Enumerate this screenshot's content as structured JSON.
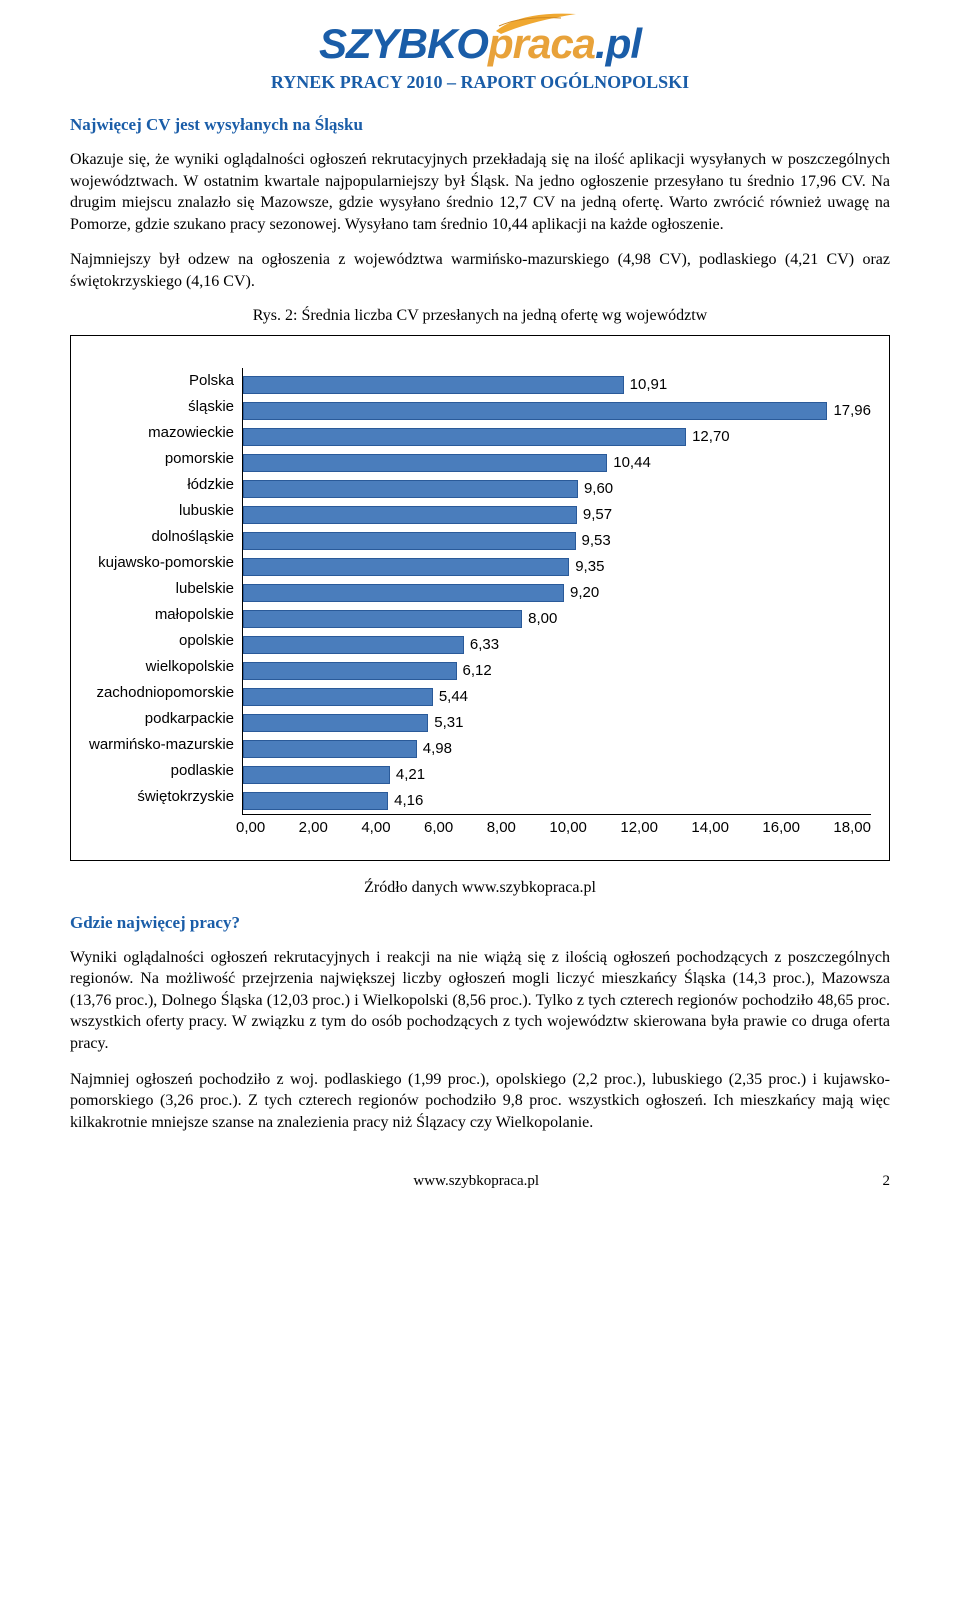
{
  "logo": {
    "part1": "SZYBKO",
    "part2": "praca",
    "part3": ".pl",
    "wing_color": "#f0a830"
  },
  "subtitle": "RYNEK PRACY 2010 – RAPORT OGÓLNOPOLSKI",
  "section1": {
    "heading": "Najwięcej CV jest wysyłanych na Śląsku",
    "p1": "Okazuje się, że wyniki oglądalności ogłoszeń rekrutacyjnych przekładają się na ilość aplikacji wysyłanych w poszczególnych województwach. W ostatnim kwartale najpopularniejszy był Śląsk. Na jedno ogłoszenie przesyłano tu średnio 17,96 CV. Na drugim miejscu znalazło się Mazowsze, gdzie wysyłano średnio 12,7 CV na jedną ofertę. Warto zwrócić również uwagę na Pomorze, gdzie szukano pracy sezonowej. Wysyłano tam średnio 10,44 aplikacji na każde ogłoszenie.",
    "p2": "Najmniejszy był odzew na ogłoszenia z województwa warmińsko-mazurskiego (4,98 CV), podlaskiego (4,21 CV) oraz świętokrzyskiego (4,16 CV)."
  },
  "figure": {
    "caption": "Rys. 2: Średnia liczba CV przesłanych na jedną ofertę wg województw",
    "type": "horizontal_bar",
    "xlim": [
      0,
      18
    ],
    "xtick_step": 2,
    "xticks": [
      "0,00",
      "2,00",
      "4,00",
      "6,00",
      "8,00",
      "10,00",
      "12,00",
      "14,00",
      "16,00",
      "18,00"
    ],
    "bar_color": "#4a7dbc",
    "bar_border": "#2a5a99",
    "categories": [
      "Polska",
      "śląskie",
      "mazowieckie",
      "pomorskie",
      "łódzkie",
      "lubuskie",
      "dolnośląskie",
      "kujawsko-pomorskie",
      "lubelskie",
      "małopolskie",
      "opolskie",
      "wielkopolskie",
      "zachodniopomorskie",
      "podkarpackie",
      "warmińsko-mazurskie",
      "podlaskie",
      "świętokrzyskie"
    ],
    "values": [
      10.91,
      17.96,
      12.7,
      10.44,
      9.6,
      9.57,
      9.53,
      9.35,
      9.2,
      8.0,
      6.33,
      6.12,
      5.44,
      5.31,
      4.98,
      4.21,
      4.16
    ],
    "value_labels": [
      "10,91",
      "17,96",
      "12,70",
      "10,44",
      "9,60",
      "9,57",
      "9,53",
      "9,35",
      "9,20",
      "8,00",
      "6,33",
      "6,12",
      "5,44",
      "5,31",
      "4,98",
      "4,21",
      "4,16"
    ],
    "label_font": "Arial",
    "label_fontsize": 15
  },
  "source": "Źródło danych www.szybkopraca.pl",
  "section2": {
    "heading": "Gdzie najwięcej pracy?",
    "p1": "Wyniki oglądalności ogłoszeń rekrutacyjnych i reakcji na nie wiążą się z ilością ogłoszeń pochodzących z poszczególnych regionów. Na możliwość przejrzenia największej liczby ogłoszeń mogli liczyć mieszkańcy Śląska (14,3 proc.), Mazowsza (13,76 proc.), Dolnego Śląska (12,03 proc.) i Wielkopolski (8,56 proc.). Tylko z tych czterech regionów pochodziło 48,65 proc. wszystkich oferty pracy. W związku z tym do osób pochodzących z tych województw skierowana była prawie co druga oferta pracy.",
    "p2": "Najmniej ogłoszeń pochodziło z woj. podlaskiego (1,99 proc.), opolskiego (2,2 proc.), lubuskiego (2,35 proc.) i kujawsko-pomorskiego (3,26 proc.). Z tych czterech regionów pochodziło 9,8 proc. wszystkich ogłoszeń. Ich mieszkańcy mają więc kilkakrotnie mniejsze szanse na znalezienia pracy niż Ślązacy czy Wielkopolanie."
  },
  "footer": {
    "site": "www.szybkopraca.pl",
    "page": "2"
  }
}
